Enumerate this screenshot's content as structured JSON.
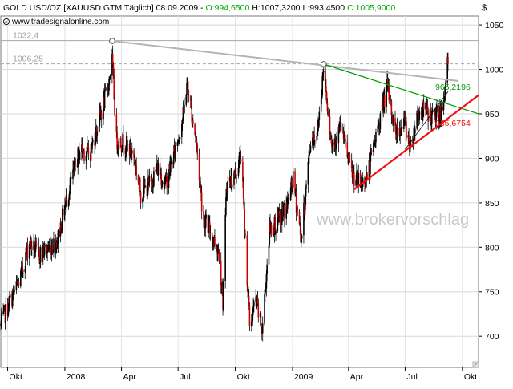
{
  "header": {
    "instrument": "GOLD USD/OZ [XAUUSD GTM  Täglich] 08.09.2009 - ",
    "open": "O:994,6500",
    "high": "H:1007,3200",
    "low": "L:993,4500",
    "close": "C:1005,9000",
    "source": "www.tradesignalonline.com",
    "currency_symbol": "$"
  },
  "watermark": "www.brokervorschlag",
  "colors": {
    "up_candle": "#000000",
    "down_candle": "#cc0000",
    "green_line": "#009900",
    "red_line": "#ee1111",
    "gray_line": "#b4b4b4",
    "header_open": "#00aa00",
    "header_close": "#00aa00"
  },
  "chart_data": {
    "type": "candlestick",
    "title": "GOLD USD/OZ [XAUUSD GTM  Täglich] 08.09.2009",
    "ylim": [
      665,
      1060
    ],
    "xlim": [
      "2007-09-20",
      "2009-10-27"
    ],
    "y_ticks": [
      700,
      750,
      800,
      850,
      900,
      950,
      1000,
      1050
    ],
    "x_ticks": [
      {
        "label": "Okt",
        "date": "2007-10-01"
      },
      {
        "label": "2008",
        "date": "2008-01-01"
      },
      {
        "label": "Apr",
        "date": "2008-04-01"
      },
      {
        "label": "Jul",
        "date": "2008-07-01"
      },
      {
        "label": "Okt",
        "date": "2008-10-01"
      },
      {
        "label": "2009",
        "date": "2009-01-01"
      },
      {
        "label": "Apr",
        "date": "2009-04-01"
      },
      {
        "label": "Jul",
        "date": "2009-07-01"
      },
      {
        "label": "Okt",
        "date": "2009-10-01"
      }
    ],
    "price_path": [
      [
        "2007-09-20",
        712
      ],
      [
        "2007-10-05",
        740
      ],
      [
        "2007-10-20",
        762
      ],
      [
        "2007-11-05",
        805
      ],
      [
        "2007-11-20",
        792
      ],
      [
        "2007-12-05",
        798
      ],
      [
        "2007-12-20",
        808
      ],
      [
        "2008-01-05",
        858
      ],
      [
        "2008-01-25",
        910
      ],
      [
        "2008-02-10",
        905
      ],
      [
        "2008-02-25",
        942
      ],
      [
        "2008-03-10",
        980
      ],
      [
        "2008-03-17",
        1010
      ],
      [
        "2008-03-24",
        920
      ],
      [
        "2008-04-05",
        918
      ],
      [
        "2008-04-20",
        905
      ],
      [
        "2008-05-02",
        860
      ],
      [
        "2008-05-15",
        870
      ],
      [
        "2008-05-30",
        890
      ],
      [
        "2008-06-10",
        870
      ],
      [
        "2008-06-25",
        905
      ],
      [
        "2008-07-10",
        950
      ],
      [
        "2008-07-15",
        985
      ],
      [
        "2008-07-30",
        920
      ],
      [
        "2008-08-10",
        835
      ],
      [
        "2008-08-20",
        820
      ],
      [
        "2008-09-05",
        795
      ],
      [
        "2008-09-11",
        740
      ],
      [
        "2008-09-17",
        870
      ],
      [
        "2008-09-30",
        880
      ],
      [
        "2008-10-10",
        905
      ],
      [
        "2008-10-24",
        712
      ],
      [
        "2008-11-03",
        740
      ],
      [
        "2008-11-13",
        705
      ],
      [
        "2008-11-25",
        820
      ],
      [
        "2008-12-10",
        830
      ],
      [
        "2008-12-22",
        845
      ],
      [
        "2009-01-02",
        875
      ],
      [
        "2009-01-15",
        810
      ],
      [
        "2009-01-30",
        920
      ],
      [
        "2009-02-10",
        930
      ],
      [
        "2009-02-20",
        1002
      ],
      [
        "2009-03-05",
        915
      ],
      [
        "2009-03-20",
        935
      ],
      [
        "2009-04-05",
        885
      ],
      [
        "2009-04-20",
        870
      ],
      [
        "2009-05-01",
        880
      ],
      [
        "2009-05-15",
        925
      ],
      [
        "2009-06-02",
        980
      ],
      [
        "2009-06-15",
        930
      ],
      [
        "2009-07-01",
        940
      ],
      [
        "2009-07-10",
        910
      ],
      [
        "2009-07-20",
        950
      ],
      [
        "2009-08-01",
        955
      ],
      [
        "2009-08-15",
        945
      ],
      [
        "2009-08-25",
        950
      ],
      [
        "2009-09-01",
        955
      ],
      [
        "2009-09-03",
        990
      ],
      [
        "2009-09-08",
        1006
      ]
    ],
    "horizontal_levels": [
      {
        "value": 1032.4,
        "label": "1032,4"
      },
      {
        "value": 1006.25,
        "label": "1006,25"
      }
    ],
    "trend_lines": [
      {
        "name": "gray",
        "from": [
          "2008-03-17",
          1032
        ],
        "to": [
          "2009-09-25",
          987
        ]
      },
      {
        "name": "green",
        "from": [
          "2009-02-20",
          1006
        ],
        "to": [
          "2009-10-27",
          950
        ],
        "label": "965,2196"
      },
      {
        "name": "red",
        "from": [
          "2009-04-10",
          865
        ],
        "to": [
          "2009-10-27",
          971
        ],
        "label": "935,6754"
      },
      {
        "name": "thin-black",
        "from": [
          "2009-07-01",
          910
        ],
        "to": [
          "2009-09-08",
          975
        ]
      }
    ],
    "markers": [
      {
        "date": "2008-03-17",
        "value": 1032
      },
      {
        "date": "2009-02-20",
        "value": 1006
      }
    ]
  }
}
